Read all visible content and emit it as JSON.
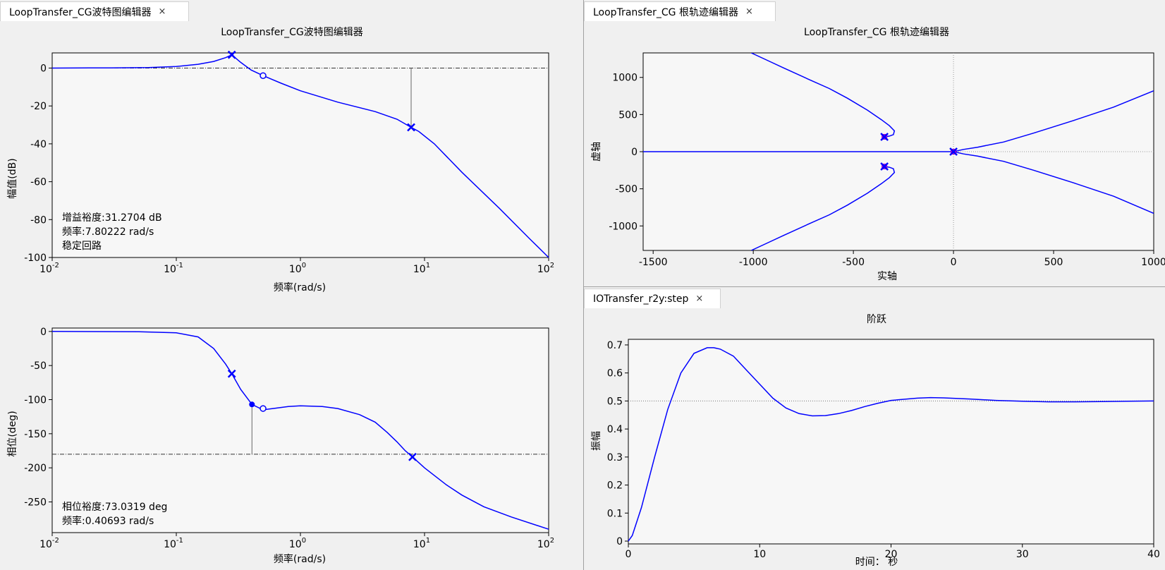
{
  "colors": {
    "curve": "#0000ff",
    "pole_marker": "#aa00cc",
    "frame": "#000000",
    "plot_bg": "#f7f7f7",
    "panel_bg": "#f0f0f0"
  },
  "bode_panel": {
    "tab": {
      "label": "LoopTransfer_CG波特图编辑器",
      "close": "×"
    },
    "title": "LoopTransfer_CG波特图编辑器",
    "mag": {
      "ylabel": "幅值(dB)",
      "xlabel": "频率(rad/s)",
      "yticks": [
        "0",
        "-20",
        "-40",
        "-60",
        "-80",
        "-100"
      ],
      "xticks": [
        {
          "base": "10",
          "exp": "-2"
        },
        {
          "base": "10",
          "exp": "-1"
        },
        {
          "base": "10",
          "exp": "0"
        },
        {
          "base": "10",
          "exp": "1"
        },
        {
          "base": "10",
          "exp": "2"
        }
      ],
      "info": [
        "增益裕度:31.2704 dB",
        "频率:7.80222 rad/s",
        "稳定回路"
      ]
    },
    "phase": {
      "ylabel": "相位(deg)",
      "xlabel": "频率(rad/s)",
      "yticks": [
        "0",
        "-50",
        "-100",
        "-150",
        "-200",
        "-250"
      ],
      "xticks": [
        {
          "base": "10",
          "exp": "-2"
        },
        {
          "base": "10",
          "exp": "-1"
        },
        {
          "base": "10",
          "exp": "0"
        },
        {
          "base": "10",
          "exp": "1"
        },
        {
          "base": "10",
          "exp": "2"
        }
      ],
      "info": [
        "相位裕度:73.0319 deg",
        "频率:0.40693 rad/s"
      ]
    }
  },
  "rootlocus_panel": {
    "tab": {
      "label": "LoopTransfer_CG 根轨迹编辑器",
      "close": "×"
    },
    "title": "LoopTransfer_CG 根轨迹编辑器",
    "xlabel": "实轴",
    "ylabel": "虚轴",
    "xticks": [
      "-1500",
      "-1000",
      "-500",
      "0",
      "500",
      "1000"
    ],
    "yticks": [
      "1000",
      "500",
      "0",
      "-500",
      "-1000"
    ]
  },
  "step_panel": {
    "tab": {
      "label": "IOTransfer_r2y:step",
      "close": "×"
    },
    "title": "阶跃",
    "xlabel": "时间： 秒",
    "ylabel": "振幅",
    "xticks": [
      "0",
      "10",
      "20",
      "30",
      "40"
    ],
    "yticks": [
      "0.7",
      "0.6",
      "0.5",
      "0.4",
      "0.3",
      "0.2",
      "0.1",
      "0"
    ]
  },
  "chart_data": [
    {
      "type": "line",
      "title": "LoopTransfer_CG波特图编辑器",
      "xlabel": "频率(rad/s)",
      "ylabel": "幅值(dB)",
      "xscale": "log",
      "xlim": [
        0.01,
        100
      ],
      "ylim": [
        -100,
        8
      ],
      "x": [
        0.01,
        0.03,
        0.06,
        0.1,
        0.15,
        0.2,
        0.25,
        0.28,
        0.33,
        0.4,
        0.5,
        0.7,
        1,
        2,
        4,
        6,
        7.8,
        9,
        12,
        20,
        40,
        70,
        100
      ],
      "y": [
        0,
        0.1,
        0.3,
        0.8,
        2,
        3.5,
        5.5,
        7,
        3,
        -1,
        -4,
        -8,
        -12,
        -18,
        -23,
        -27,
        -31.3,
        -33.5,
        -40,
        -55,
        -74,
        -90,
        -100
      ],
      "markers": [
        {
          "x": 0.28,
          "y": 7,
          "kind": "x"
        },
        {
          "x": 0.5,
          "y": -4,
          "kind": "o"
        },
        {
          "x": 7.8,
          "y": -31.3,
          "kind": "x"
        }
      ],
      "annotations": [
        "增益裕度:31.2704 dB",
        "频率:7.80222 rad/s",
        "稳定回路"
      ]
    },
    {
      "type": "line",
      "title": "",
      "xlabel": "频率(rad/s)",
      "ylabel": "相位(deg)",
      "xscale": "log",
      "xlim": [
        0.01,
        100
      ],
      "ylim": [
        -295,
        5
      ],
      "x": [
        0.01,
        0.05,
        0.1,
        0.15,
        0.2,
        0.25,
        0.28,
        0.33,
        0.4069,
        0.5,
        0.6,
        0.8,
        1,
        1.5,
        2,
        3,
        4,
        5,
        6,
        7,
        8,
        10,
        15,
        20,
        30,
        50,
        100
      ],
      "y": [
        0,
        -0.5,
        -2,
        -8,
        -25,
        -48,
        -62,
        -85,
        -107,
        -115,
        -113,
        -110,
        -109,
        -110,
        -113,
        -122,
        -133,
        -148,
        -162,
        -175,
        -184,
        -200,
        -225,
        -240,
        -257,
        -272,
        -290
      ],
      "markers": [
        {
          "x": 0.28,
          "y": -62,
          "kind": "x"
        },
        {
          "x": 0.4069,
          "y": -107,
          "kind": "dot"
        },
        {
          "x": 0.5,
          "y": -113,
          "kind": "o"
        },
        {
          "x": 8,
          "y": -184,
          "kind": "x"
        }
      ],
      "annotations": [
        "相位裕度:73.0319 deg",
        "频率:0.40693 rad/s"
      ]
    },
    {
      "type": "line",
      "title": "LoopTransfer_CG 根轨迹编辑器",
      "xlabel": "实轴",
      "ylabel": "虚轴",
      "xlim": [
        -1550,
        1000
      ],
      "ylim": [
        -1330,
        1330
      ],
      "series": [
        {
          "points": [
            [
              -340,
              200
            ],
            [
              -320,
              210
            ],
            [
              -300,
              230
            ],
            [
              -295,
              280
            ],
            [
              -320,
              350
            ],
            [
              -360,
              430
            ],
            [
              -430,
              560
            ],
            [
              -530,
              720
            ],
            [
              -620,
              850
            ],
            [
              -720,
              970
            ],
            [
              -850,
              1130
            ],
            [
              -930,
              1230
            ],
            [
              -1010,
              1330
            ]
          ]
        },
        {
          "points": [
            [
              -340,
              -200
            ],
            [
              -320,
              -210
            ],
            [
              -300,
              -230
            ],
            [
              -295,
              -280
            ],
            [
              -320,
              -350
            ],
            [
              -360,
              -430
            ],
            [
              -430,
              -560
            ],
            [
              -530,
              -720
            ],
            [
              -620,
              -850
            ],
            [
              -720,
              -970
            ],
            [
              -850,
              -1130
            ],
            [
              -930,
              -1230
            ],
            [
              -1010,
              -1330
            ]
          ]
        },
        {
          "points": [
            [
              0,
              0
            ],
            [
              50,
              30
            ],
            [
              120,
              60
            ],
            [
              250,
              130
            ],
            [
              400,
              250
            ],
            [
              600,
              420
            ],
            [
              800,
              600
            ],
            [
              1000,
              820
            ]
          ]
        },
        {
          "points": [
            [
              0,
              0
            ],
            [
              50,
              -30
            ],
            [
              120,
              -60
            ],
            [
              250,
              -130
            ],
            [
              400,
              -250
            ],
            [
              600,
              -420
            ],
            [
              800,
              -600
            ],
            [
              1000,
              -830
            ]
          ]
        },
        {
          "points": [
            [
              -1550,
              0
            ],
            [
              0,
              0
            ]
          ]
        }
      ],
      "poles": [
        [
          -345,
          200
        ],
        [
          -345,
          -200
        ],
        [
          0,
          0
        ]
      ]
    },
    {
      "type": "line",
      "title": "阶跃",
      "xlabel": "时间： 秒",
      "ylabel": "振幅",
      "xlim": [
        0,
        40
      ],
      "ylim": [
        -0.01,
        0.72
      ],
      "reference": 0.5,
      "x": [
        0,
        0.3,
        1,
        2,
        3,
        4,
        5,
        6,
        6.5,
        7,
        8,
        9,
        10,
        11,
        12,
        13,
        14,
        15,
        16,
        17,
        18,
        19,
        20,
        22,
        23,
        24,
        26,
        28,
        30,
        32,
        34,
        36,
        38,
        40
      ],
      "y": [
        0,
        0.02,
        0.12,
        0.3,
        0.47,
        0.6,
        0.67,
        0.69,
        0.69,
        0.685,
        0.66,
        0.61,
        0.56,
        0.51,
        0.475,
        0.455,
        0.447,
        0.448,
        0.455,
        0.466,
        0.48,
        0.492,
        0.502,
        0.51,
        0.512,
        0.511,
        0.507,
        0.502,
        0.499,
        0.497,
        0.497,
        0.498,
        0.499,
        0.5
      ]
    }
  ]
}
